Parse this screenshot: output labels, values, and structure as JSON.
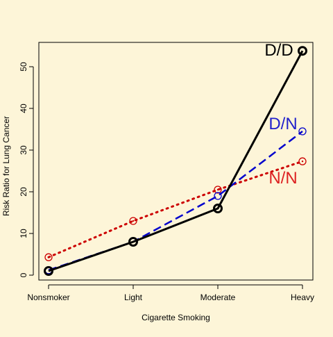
{
  "chart_data": {
    "type": "line",
    "title": "",
    "xlabel": "Cigarette Smoking",
    "ylabel": "Risk Ratio for Lung Cancer",
    "categories": [
      "Nonsmoker",
      "Light",
      "Moderate",
      "Heavy"
    ],
    "ylim": [
      -2,
      56
    ],
    "yticks": [
      0,
      10,
      20,
      30,
      40,
      50
    ],
    "grid": false,
    "series": [
      {
        "name": "D/D",
        "values": [
          1.0,
          8.0,
          16.0,
          53.8
        ],
        "color": "#000000",
        "style": "solid",
        "label_color": "#000000"
      },
      {
        "name": "D/N",
        "values": [
          1.2,
          8.0,
          19.0,
          34.5
        ],
        "color": "#0000cc",
        "style": "dashed",
        "label_color": "#2222cc"
      },
      {
        "name": "N/N",
        "values": [
          4.3,
          13.0,
          20.5,
          27.3
        ],
        "color": "#cc0000",
        "style": "dotted",
        "label_color": "#dd2222"
      }
    ]
  }
}
